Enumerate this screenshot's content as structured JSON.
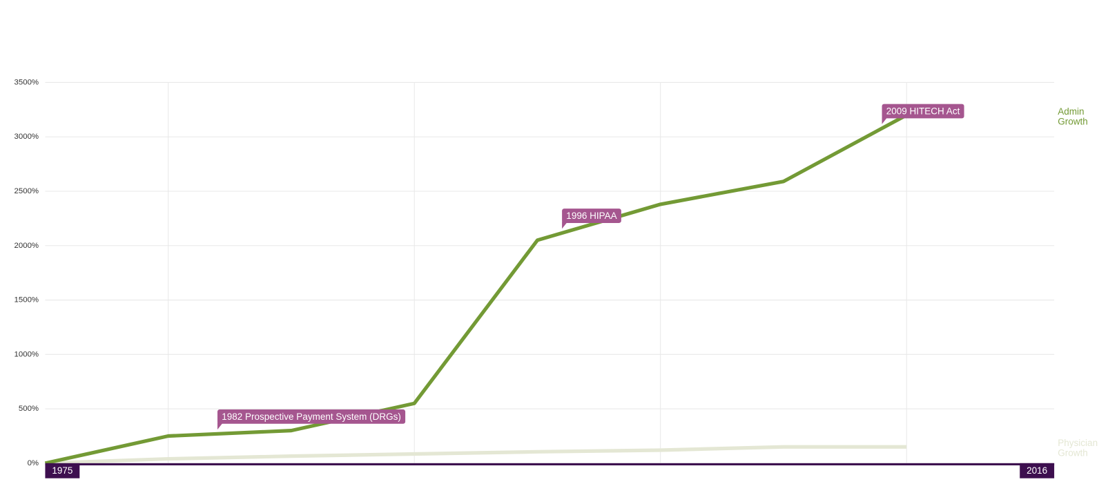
{
  "chart_data": {
    "type": "line",
    "x": [
      1975,
      1980,
      1985,
      1990,
      1995,
      2000,
      2005,
      2010
    ],
    "series": [
      {
        "name": "Admin Growth",
        "color": "#739a35",
        "values": [
          0,
          250,
          300,
          550,
          2050,
          2380,
          2590,
          3200
        ]
      },
      {
        "name": "Physician Growth",
        "color": "#e4e7d4",
        "values": [
          0,
          40,
          65,
          85,
          105,
          120,
          150,
          150
        ]
      }
    ],
    "xlim": [
      1975,
      2016
    ],
    "xticks": [
      1975,
      2016
    ],
    "x_grid": [
      1980,
      1990,
      2000,
      2010
    ],
    "ylim": [
      0,
      3500
    ],
    "yticks": [
      {
        "value": 0,
        "label": "0%"
      },
      {
        "value": 500,
        "label": "500%"
      },
      {
        "value": 1000,
        "label": "1000%"
      },
      {
        "value": 1500,
        "label": "1500%"
      },
      {
        "value": 2000,
        "label": "2000%"
      },
      {
        "value": 2500,
        "label": "2500%"
      },
      {
        "value": 3000,
        "label": "3000%"
      },
      {
        "value": 3500,
        "label": "3500%"
      }
    ],
    "grid": true,
    "annotations": [
      {
        "x": 1982,
        "label": "1982 Prospective Payment System (DRGs)"
      },
      {
        "x": 1996,
        "label": "1996 HIPAA"
      },
      {
        "x": 2009,
        "label": "2009 HITECH Act"
      }
    ],
    "annotation_color": "#a5568f",
    "axis_color": "#3d0f4f"
  }
}
